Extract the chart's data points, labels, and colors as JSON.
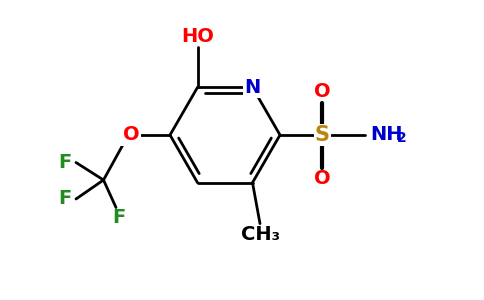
{
  "bg_color": "#ffffff",
  "ring_color": "#000000",
  "N_color": "#0000cd",
  "O_color": "#ff0000",
  "F_color": "#228B22",
  "S_color": "#b8860b",
  "NH2_color": "#0000cd",
  "HO_color": "#ff0000",
  "line_width": 2.0,
  "figsize": [
    4.84,
    3.0
  ],
  "dpi": 100,
  "xlim": [
    0,
    9.68
  ],
  "ylim": [
    0,
    6.0
  ]
}
